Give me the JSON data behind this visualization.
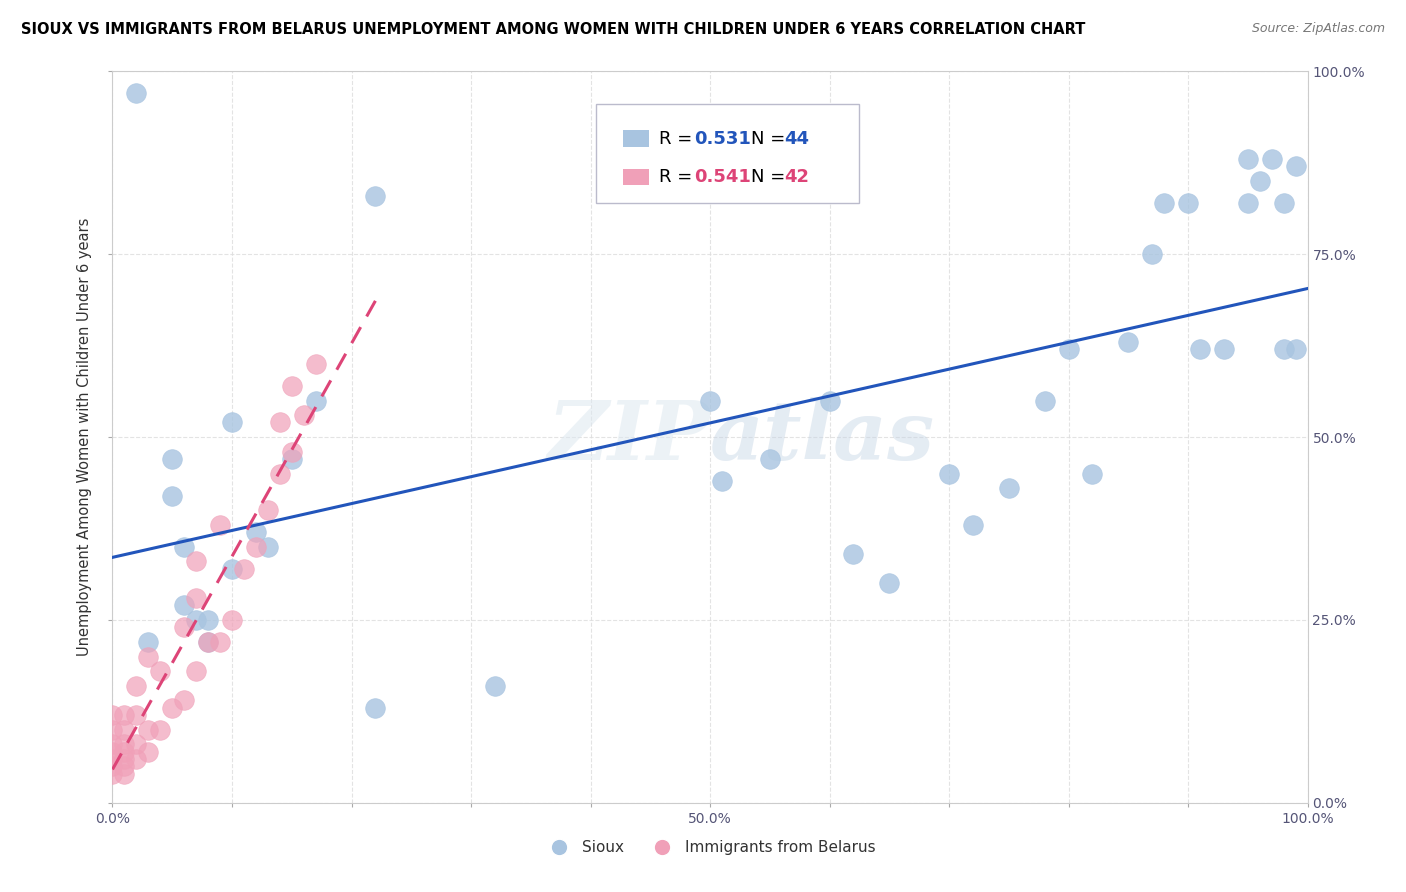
{
  "title": "SIOUX VS IMMIGRANTS FROM BELARUS UNEMPLOYMENT AMONG WOMEN WITH CHILDREN UNDER 6 YEARS CORRELATION CHART",
  "source": "Source: ZipAtlas.com",
  "ylabel": "Unemployment Among Women with Children Under 6 years",
  "sioux_R": "0.531",
  "sioux_N": "44",
  "belarus_R": "0.541",
  "belarus_N": "42",
  "sioux_color": "#a8c4e0",
  "sioux_line_color": "#2255bb",
  "belarus_color": "#f0a0b8",
  "belarus_line_color": "#dd4477",
  "text_color": "#333333",
  "grid_color": "#dddddd",
  "watermark": "ZIPatlas",
  "sioux_scatter_x": [
    0.02,
    0.22,
    0.03,
    0.05,
    0.05,
    0.06,
    0.06,
    0.07,
    0.08,
    0.08,
    0.1,
    0.1,
    0.12,
    0.13,
    0.15,
    0.17,
    0.22,
    0.32,
    0.5,
    0.51,
    0.55,
    0.6,
    0.62,
    0.65,
    0.7,
    0.72,
    0.75,
    0.78,
    0.8,
    0.82,
    0.85,
    0.87,
    0.88,
    0.9,
    0.91,
    0.93,
    0.95,
    0.95,
    0.96,
    0.97,
    0.98,
    0.98,
    0.99,
    0.99
  ],
  "sioux_scatter_y": [
    0.97,
    0.83,
    0.22,
    0.47,
    0.42,
    0.35,
    0.27,
    0.25,
    0.25,
    0.22,
    0.52,
    0.32,
    0.37,
    0.35,
    0.47,
    0.55,
    0.13,
    0.16,
    0.55,
    0.44,
    0.47,
    0.55,
    0.34,
    0.3,
    0.45,
    0.38,
    0.43,
    0.55,
    0.62,
    0.45,
    0.63,
    0.75,
    0.82,
    0.82,
    0.62,
    0.62,
    0.82,
    0.88,
    0.85,
    0.88,
    0.62,
    0.82,
    0.87,
    0.62
  ],
  "belarus_scatter_x": [
    0.0,
    0.0,
    0.0,
    0.0,
    0.0,
    0.0,
    0.0,
    0.01,
    0.01,
    0.01,
    0.01,
    0.01,
    0.01,
    0.01,
    0.02,
    0.02,
    0.02,
    0.02,
    0.03,
    0.03,
    0.03,
    0.04,
    0.04,
    0.05,
    0.06,
    0.06,
    0.07,
    0.07,
    0.07,
    0.08,
    0.09,
    0.09,
    0.1,
    0.11,
    0.12,
    0.13,
    0.14,
    0.14,
    0.15,
    0.15,
    0.16,
    0.17
  ],
  "belarus_scatter_y": [
    0.04,
    0.05,
    0.06,
    0.07,
    0.08,
    0.1,
    0.12,
    0.04,
    0.05,
    0.06,
    0.07,
    0.08,
    0.1,
    0.12,
    0.06,
    0.08,
    0.12,
    0.16,
    0.07,
    0.1,
    0.2,
    0.1,
    0.18,
    0.13,
    0.14,
    0.24,
    0.18,
    0.28,
    0.33,
    0.22,
    0.22,
    0.38,
    0.25,
    0.32,
    0.35,
    0.4,
    0.45,
    0.52,
    0.48,
    0.57,
    0.53,
    0.6
  ],
  "xlim": [
    0.0,
    1.0
  ],
  "ylim": [
    0.0,
    1.0
  ],
  "x_ticks": [
    0.0,
    0.1,
    0.2,
    0.3,
    0.4,
    0.5,
    0.6,
    0.7,
    0.8,
    0.9,
    1.0
  ],
  "x_tick_labels": [
    "0.0%",
    "",
    "",
    "",
    "",
    "50.0%",
    "",
    "",
    "",
    "",
    "100.0%"
  ],
  "y_ticks": [
    0.0,
    0.25,
    0.5,
    0.75,
    1.0
  ],
  "y_tick_labels": [
    "0.0%",
    "25.0%",
    "50.0%",
    "75.0%",
    "100.0%"
  ]
}
